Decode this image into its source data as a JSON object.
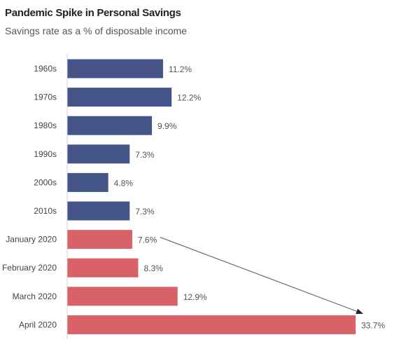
{
  "chart_data": {
    "type": "bar",
    "orientation": "horizontal",
    "title": "Pandemic Spike in Personal Savings",
    "subtitle": "Savings rate as a % of disposable income",
    "categories": [
      "1960s",
      "1970s",
      "1980s",
      "1990s",
      "2000s",
      "2010s",
      "January 2020",
      "February 2020",
      "March 2020",
      "April 2020"
    ],
    "values": [
      11.2,
      12.2,
      9.9,
      7.3,
      4.8,
      7.3,
      7.6,
      8.3,
      12.9,
      33.7
    ],
    "value_labels": [
      "11.2%",
      "12.2%",
      "9.9%",
      "7.3%",
      "4.8%",
      "7.3%",
      "7.6%",
      "8.3%",
      "12.9%",
      "33.7%"
    ],
    "colors": [
      "#465589",
      "#465589",
      "#465589",
      "#465589",
      "#465589",
      "#465589",
      "#d96168",
      "#d96168",
      "#d96168",
      "#d96168"
    ],
    "xlim": [
      0,
      33.7
    ],
    "grid": false,
    "annotation": {
      "type": "arrow",
      "from": "January 2020",
      "to": "April 2020"
    }
  }
}
